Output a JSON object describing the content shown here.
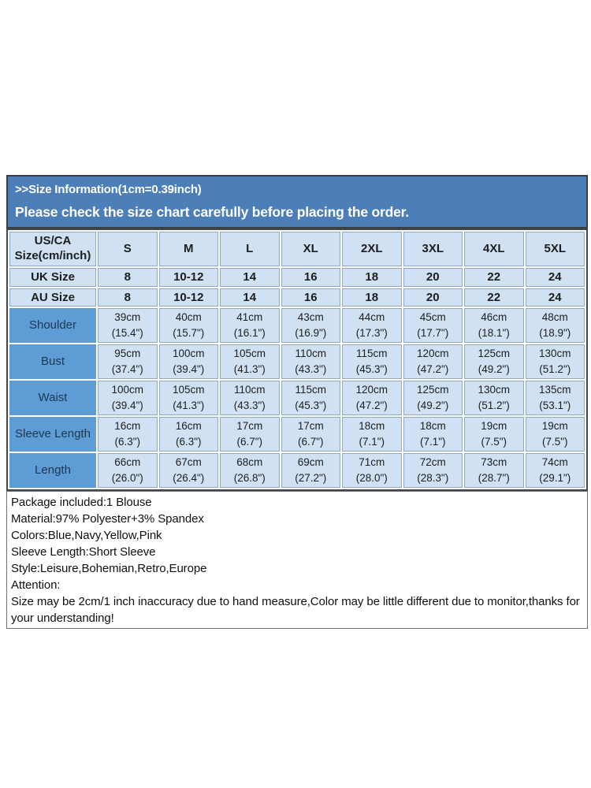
{
  "banner": {
    "title": ">>Size Information(1cm=0.39inch)",
    "subtitle": "Please check the size chart carefully before placing the order."
  },
  "size_table": {
    "header_rows": [
      {
        "label": "US/CA\nSize(cm/inch)",
        "values": [
          "S",
          "M",
          "L",
          "XL",
          "2XL",
          "3XL",
          "4XL",
          "5XL"
        ]
      },
      {
        "label": "UK Size",
        "values": [
          "8",
          "10-12",
          "14",
          "16",
          "18",
          "20",
          "22",
          "24"
        ]
      },
      {
        "label": "AU Size",
        "values": [
          "8",
          "10-12",
          "14",
          "16",
          "18",
          "20",
          "22",
          "24"
        ]
      }
    ],
    "measurement_rows": [
      {
        "label": "Shoulder",
        "values": [
          "39cm\n(15.4\")",
          "40cm\n(15.7\")",
          "41cm\n(16.1\")",
          "43cm\n(16.9\")",
          "44cm\n(17.3\")",
          "45cm\n(17.7\")",
          "46cm\n(18.1\")",
          "48cm\n(18.9\")"
        ]
      },
      {
        "label": "Bust",
        "values": [
          "95cm\n(37.4\")",
          "100cm\n(39.4\")",
          "105cm\n(41.3\")",
          "110cm\n(43.3\")",
          "115cm\n(45.3\")",
          "120cm\n(47.2\")",
          "125cm\n(49.2\")",
          "130cm\n(51.2\")"
        ]
      },
      {
        "label": "Waist",
        "values": [
          "100cm\n(39.4\")",
          "105cm\n(41.3\")",
          "110cm\n(43.3\")",
          "115cm\n(45.3\")",
          "120cm\n(47.2\")",
          "125cm\n(49.2\")",
          "130cm\n(51.2\")",
          "135cm\n(53.1\")"
        ]
      },
      {
        "label": "Sleeve Length",
        "values": [
          "16cm\n(6.3\")",
          "16cm\n(6.3\")",
          "17cm\n(6.7\")",
          "17cm\n(6.7\")",
          "18cm\n(7.1\")",
          "18cm\n(7.1\")",
          "19cm\n(7.5\")",
          "19cm\n(7.5\")"
        ]
      },
      {
        "label": "Length",
        "values": [
          "66cm\n(26.0\")",
          "67cm\n(26.4\")",
          "68cm\n(26.8\")",
          "69cm\n(27.2\")",
          "71cm\n(28.0\")",
          "72cm\n(28.3\")",
          "73cm\n(28.7\")",
          "74cm\n(29.1\")"
        ]
      }
    ]
  },
  "product_info": {
    "lines": [
      "Package included:1 Blouse",
      "Material:97% Polyester+3% Spandex",
      "Colors:Blue,Navy,Yellow,Pink",
      "Sleeve Length:Short Sleeve",
      "Style:Leisure,Bohemian,Retro,Europe",
      "Attention:",
      "Size may be 2cm/1 inch inaccuracy due to hand measure,Color may be little different due to monitor,thanks for your understanding!"
    ]
  },
  "theme": {
    "banner_blue": "#4c7eb8",
    "cell_light_blue": "#cfe1f3",
    "label_medium_blue": "#5e9cd6",
    "cell_border_gray": "#90a8c0",
    "outer_border_dark": "#42474e",
    "banner_text": "#ffffff",
    "table_text": "#1d1d1d"
  }
}
